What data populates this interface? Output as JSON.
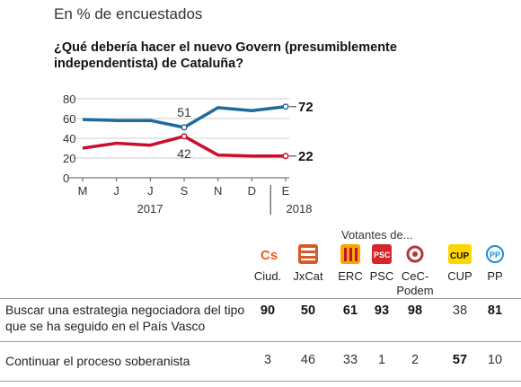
{
  "header": {
    "subtitle": "En % de encuestados",
    "title_line1": "¿Qué debería hacer el nuevo Govern (presumiblemente",
    "title_line2": "independentista) de Cataluña?"
  },
  "chart_data": {
    "type": "line",
    "x": [
      "M",
      "J",
      "J",
      "S",
      "N",
      "D",
      "E"
    ],
    "year_labels": [
      "2017",
      "2018"
    ],
    "ylim": [
      0,
      80
    ],
    "yticks": [
      0,
      20,
      40,
      60,
      80
    ],
    "grid": true,
    "series": [
      {
        "color": "#1f6a9c",
        "values": [
          59,
          58,
          58,
          51,
          71,
          68,
          72
        ]
      },
      {
        "color": "#c8102e",
        "values": [
          30,
          35,
          33,
          42,
          23,
          22,
          22
        ]
      }
    ],
    "annotations": [
      "51",
      "42",
      "72",
      "22"
    ]
  },
  "table": {
    "group_label": "Votantes de...",
    "parties": [
      {
        "name": "Ciud.",
        "logo": "cs-logo",
        "color": "#f05a23"
      },
      {
        "name": "JxCat",
        "logo": "jxcat-logo",
        "color": "#d9592a"
      },
      {
        "name": "ERC",
        "logo": "erc-logo",
        "color": "#f2a900"
      },
      {
        "name": "PSC",
        "logo": "psc-logo",
        "color": "#d7262b"
      },
      {
        "name": "CeC-\nPodem",
        "logo": "cec-logo",
        "color": "#b5343a"
      },
      {
        "name": "CUP",
        "logo": "cup-logo",
        "color": "#ffd700"
      },
      {
        "name": "PP",
        "logo": "pp-logo",
        "color": "#1b8fd1"
      }
    ],
    "rows": [
      {
        "label": "Buscar una estrategia negociadora del tipo que se ha seguido en el País Vasco",
        "values": [
          "90",
          "50",
          "61",
          "93",
          "98",
          "38",
          "81"
        ],
        "bold": [
          true,
          true,
          true,
          true,
          true,
          false,
          true
        ]
      },
      {
        "label": "Continuar el proceso soberanista",
        "values": [
          "3",
          "46",
          "33",
          "1",
          "2",
          "57",
          "10"
        ],
        "bold": [
          false,
          false,
          false,
          false,
          false,
          true,
          false
        ]
      }
    ]
  }
}
